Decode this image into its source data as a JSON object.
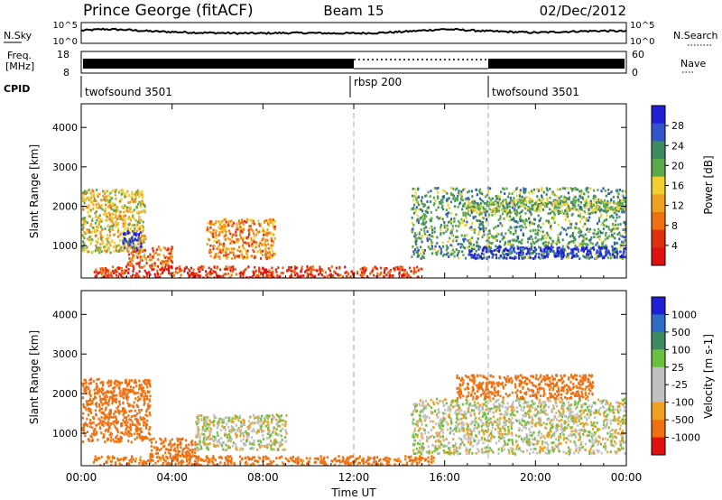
{
  "header": {
    "station": "Prince George (fitACF)",
    "beam": "Beam 15",
    "date": "02/Dec/2012"
  },
  "labels": {
    "nsky": "N.Sky",
    "nsearch": "N.Search",
    "freq_line1": "Freq.",
    "freq_line2": "[MHz]",
    "nave": "Nave",
    "cpid": "CPID",
    "noise_tick_top": "10^5",
    "noise_tick_bottom": "10^0",
    "freq_tick_top": "18",
    "freq_tick_bottom": "8",
    "nave_tick_top": "60",
    "nave_tick_bottom": "0",
    "x_title": "Time UT"
  },
  "cpid_segments": [
    {
      "label": "twofsound 3501",
      "start_hour": 0,
      "end_hour": 12
    },
    {
      "label": "rbsp 200",
      "start_hour": 12,
      "end_hour": 18
    },
    {
      "label": "twofsound 3501",
      "start_hour": 18,
      "end_hour": 24
    }
  ],
  "colors": {
    "power_scale": [
      "#1f1fd6",
      "#3355cc",
      "#3d8c60",
      "#5aaa4a",
      "#f0d030",
      "#f0a020",
      "#f07010",
      "#e03010",
      "#e01010"
    ],
    "velocity_scale": [
      "#1f1fd6",
      "#2e6cc8",
      "#3d8c60",
      "#6cc040",
      "#c0c0c0",
      "#c0c0c0",
      "#f0a020",
      "#f07010",
      "#e01010"
    ]
  },
  "chart_data": [
    {
      "type": "heatmap",
      "title": "Power",
      "ylabel": "Slant Range [km]",
      "xlabel": "Time UT",
      "x_ticks": [
        "00:00",
        "04:00",
        "08:00",
        "12:00",
        "16:00",
        "20:00",
        "00:00"
      ],
      "x_range_hours": [
        0,
        24
      ],
      "y_ticks": [
        1000,
        2000,
        3000,
        4000
      ],
      "ylim": [
        180,
        4600
      ],
      "colorbar": {
        "label": "Power [dB]",
        "ticks": [
          4,
          8,
          12,
          16,
          20,
          24,
          28
        ],
        "range": [
          0,
          30
        ]
      },
      "regions": [
        {
          "hours": [
            0.0,
            2.8
          ],
          "range_km": [
            850,
            2450
          ],
          "value": 14
        },
        {
          "hours": [
            1.8,
            2.6
          ],
          "range_km": [
            900,
            1400
          ],
          "value": 27
        },
        {
          "hours": [
            2.0,
            4.0
          ],
          "range_km": [
            500,
            1000
          ],
          "value": 8
        },
        {
          "hours": [
            5.5,
            8.5
          ],
          "range_km": [
            700,
            1700
          ],
          "value": 10
        },
        {
          "hours": [
            0.5,
            15.0
          ],
          "range_km": [
            200,
            500
          ],
          "value": 5
        },
        {
          "hours": [
            14.5,
            24.0
          ],
          "range_km": [
            700,
            2500
          ],
          "value": 20
        },
        {
          "hours": [
            17.0,
            24.0
          ],
          "range_km": [
            700,
            1000
          ],
          "value": 28
        },
        {
          "hours": [
            17.0,
            24.0
          ],
          "range_km": [
            1900,
            2200
          ],
          "value": 18
        }
      ]
    },
    {
      "type": "heatmap",
      "title": "Velocity",
      "ylabel": "Slant Range [km]",
      "xlabel": "Time UT",
      "x_ticks": [
        "00:00",
        "04:00",
        "08:00",
        "12:00",
        "16:00",
        "20:00",
        "00:00"
      ],
      "x_range_hours": [
        0,
        24
      ],
      "y_ticks": [
        1000,
        2000,
        3000,
        4000
      ],
      "ylim": [
        180,
        4600
      ],
      "colorbar": {
        "label": "Velocity [m s-1]",
        "ticks": [
          1000,
          500,
          100,
          25,
          -25,
          -100,
          -500,
          -1000
        ]
      },
      "regions": [
        {
          "hours": [
            0.0,
            3.0
          ],
          "range_km": [
            800,
            2400
          ],
          "value": -200
        },
        {
          "hours": [
            3.0,
            5.0
          ],
          "range_km": [
            400,
            900
          ],
          "value": -300
        },
        {
          "hours": [
            5.0,
            9.0
          ],
          "range_km": [
            600,
            1500
          ],
          "value": 0
        },
        {
          "hours": [
            14.5,
            24.0
          ],
          "range_km": [
            500,
            1900
          ],
          "value": 0
        },
        {
          "hours": [
            16.5,
            22.5
          ],
          "range_km": [
            1900,
            2500
          ],
          "value": -400
        },
        {
          "hours": [
            0.5,
            15.5
          ],
          "range_km": [
            200,
            450
          ],
          "value": -150
        }
      ]
    }
  ],
  "noise_series": {
    "hours": [
      0,
      1,
      2,
      3,
      4,
      5,
      6,
      7,
      8,
      9,
      10,
      11,
      12,
      13,
      14,
      15,
      16,
      17,
      18,
      19,
      20,
      21,
      22,
      23,
      24
    ],
    "log10_value": [
      3.2,
      3.6,
      3.4,
      3.0,
      2.8,
      2.6,
      2.5,
      2.4,
      2.4,
      2.5,
      2.5,
      2.4,
      2.4,
      2.5,
      2.8,
      3.2,
      3.6,
      3.3,
      3.0,
      2.8,
      2.6,
      2.8,
      3.0,
      3.1,
      3.0
    ]
  }
}
